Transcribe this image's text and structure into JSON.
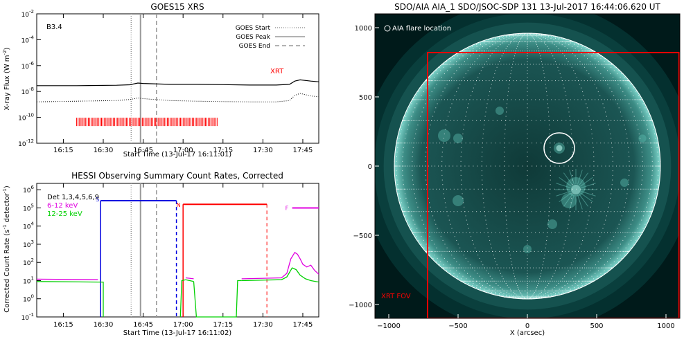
{
  "colors": {
    "red": "#ff0000",
    "magenta": "#e000e0",
    "green": "#00d000",
    "blue": "#0000e0",
    "gray": "#999999",
    "black": "#000000",
    "aia_bg": "#001a1a",
    "aia_limb": "#4fa8a0"
  },
  "chart_data": [
    {
      "type": "line",
      "title": "GOES15 XRS",
      "xlabel": "Start Time (13-Jul-17 16:11:01)",
      "ylabel": "X-ray Flux (W m",
      "ylabel_sup": "-2",
      "ylabel_close": ")",
      "xticks": [
        "16:15",
        "16:30",
        "16:45",
        "17:00",
        "17:15",
        "17:30",
        "17:45"
      ],
      "xticks_min": [
        15,
        30,
        45,
        60,
        75,
        90,
        105
      ],
      "xlim_min": [
        5,
        111
      ],
      "ylog_range": [
        -12,
        -2
      ],
      "ytick_exps": [
        "-2",
        "-4",
        "-6",
        "-8",
        "-10",
        "-12"
      ],
      "yticks_log": [
        -2,
        -4,
        -6,
        -8,
        -10,
        -12
      ],
      "class_label": "B3.4",
      "xrt_label": "XRT",
      "legend": [
        {
          "label": "GOES Start",
          "style": "dotted",
          "min": 40.5
        },
        {
          "label": "GOES Peak",
          "style": "solid",
          "min": 44
        },
        {
          "label": "GOES End",
          "style": "dashed",
          "min": 50
        }
      ],
      "series": [
        {
          "style": "solid",
          "x": [
            5,
            20,
            35,
            40,
            43,
            45,
            48,
            55,
            65,
            75,
            85,
            95,
            100,
            102,
            104,
            108,
            111
          ],
          "y": [
            -7.55,
            -7.55,
            -7.52,
            -7.48,
            -7.35,
            -7.38,
            -7.4,
            -7.45,
            -7.45,
            -7.47,
            -7.5,
            -7.5,
            -7.45,
            -7.2,
            -7.1,
            -7.2,
            -7.25
          ]
        },
        {
          "style": "dotted",
          "x": [
            5,
            20,
            35,
            40,
            43,
            45,
            48,
            55,
            65,
            75,
            85,
            95,
            100,
            102,
            104,
            108,
            111
          ],
          "y": [
            -8.8,
            -8.75,
            -8.7,
            -8.62,
            -8.5,
            -8.55,
            -8.6,
            -8.7,
            -8.75,
            -8.78,
            -8.8,
            -8.8,
            -8.7,
            -8.3,
            -8.15,
            -8.35,
            -8.4
          ]
        }
      ],
      "xrt_obs_range_min": [
        20,
        73
      ],
      "xrt_obs_level_log": -10.35
    },
    {
      "type": "line",
      "title": "HESSI Observing Summary Count Rates, Corrected",
      "xlabel": "Start Time (13-Jul-17 16:11:02)",
      "ylabel": "Corrected Count Rate (s",
      "ylabel_sup": "-1",
      "ylabel_mid": " detector",
      "ylabel_sup2": "-1",
      "ylabel_close": ")",
      "xticks": [
        "16:15",
        "16:30",
        "16:45",
        "17:00",
        "17:15",
        "17:30",
        "17:45"
      ],
      "xticks_min": [
        15,
        30,
        45,
        60,
        75,
        90,
        105
      ],
      "xlim_min": [
        5,
        111
      ],
      "ylog_range": [
        -1,
        6
      ],
      "ytick_exps": [
        "6",
        "5",
        "4",
        "3",
        "2",
        "1",
        "0",
        "-1"
      ],
      "yticks_log": [
        6,
        5,
        4,
        3,
        2,
        1,
        0,
        -1
      ],
      "legend": [
        {
          "label": "Det 1,3,4,5,6,9",
          "color": "black"
        },
        {
          "label": "6-12 keV",
          "color": "magenta"
        },
        {
          "label": "12-25 keV",
          "color": "green"
        }
      ],
      "series": [
        {
          "name": "6-12 keV",
          "color": "magenta",
          "segments": [
            {
              "x": [
                5,
                28
              ],
              "y": [
                1.08,
                1.05
              ]
            },
            {
              "x": [
                61,
                64
              ],
              "y": [
                1.15,
                1.1
              ]
            },
            {
              "x": [
                82,
                97,
                99,
                100.5,
                102,
                103,
                104,
                105,
                106.5,
                108,
                109.5,
                111
              ],
              "y": [
                1.1,
                1.15,
                1.4,
                2.2,
                2.55,
                2.45,
                2.2,
                1.9,
                1.75,
                1.85,
                1.55,
                1.35
              ]
            }
          ]
        },
        {
          "name": "12-25 keV",
          "color": "green",
          "segments": [
            {
              "x": [
                5,
                28
              ],
              "y": [
                0.95,
                0.92
              ]
            },
            {
              "x": [
                61,
                64
              ],
              "y": [
                1.05,
                0.95
              ]
            },
            {
              "x": [
                82,
                97,
                99,
                101,
                102.5,
                104,
                106,
                108,
                111
              ],
              "y": [
                1.0,
                1.05,
                1.2,
                1.7,
                1.6,
                1.3,
                1.1,
                1.0,
                0.92
              ]
            }
          ]
        },
        {
          "name": "12-25 keV drop",
          "color": "green",
          "segments": [
            {
              "x": [
                28,
                30,
                30
              ],
              "y": [
                0.92,
                0.92,
                -1
              ]
            },
            {
              "x": [
                59,
                59.5,
                61
              ],
              "y": [
                -1,
                1.0,
                1.05
              ]
            },
            {
              "x": [
                64,
                65,
                80,
                80.5,
                82
              ],
              "y": [
                0.95,
                -1,
                -1,
                1.0,
                1.0
              ]
            }
          ]
        }
      ],
      "verticals": [
        {
          "min": 40.5,
          "style": "dotted",
          "color": "gray"
        },
        {
          "min": 44,
          "style": "solid",
          "color": "gray"
        },
        {
          "min": 50,
          "style": "dashed",
          "color": "gray"
        }
      ],
      "saa_blue": {
        "start": 29,
        "end": 57.5,
        "level_log": 5.4,
        "label_s": "S",
        "label_n": "N"
      },
      "red_night": {
        "start": 60,
        "end": 91.5,
        "level_log": 5.2,
        "label": "N"
      },
      "flare_f": {
        "label": "F",
        "start": 101,
        "end": 111,
        "level_log": 5.0
      }
    },
    {
      "type": "image",
      "title": "SDO/AIA AIA_1 SDO/JSOC-SDP 131 13-Jul-2017 16:44:06.620 UT",
      "xlabel": "X (arcsec)",
      "xticks": [
        "−1000",
        "−500",
        "0",
        "500",
        "1000"
      ],
      "xticks_val": [
        -1000,
        -500,
        0,
        500,
        1000
      ],
      "yticks": [
        "1000",
        "500",
        "0",
        "−500",
        "−1000"
      ],
      "yticks_val": [
        1000,
        500,
        0,
        -500,
        -1000
      ],
      "xlim": [
        -1100,
        1100
      ],
      "ylim": [
        -1100,
        1100
      ],
      "solar_radius_arcsec": 960,
      "flare_marker_label": "AIA flare location",
      "flare_location_arcsec": [
        230,
        130
      ],
      "flare_marker_radius_arcsec": 110,
      "xrt_fov_label": "XRT FOV",
      "xrt_fov_arcsec": [
        -720,
        -1100,
        1100,
        820
      ]
    }
  ]
}
